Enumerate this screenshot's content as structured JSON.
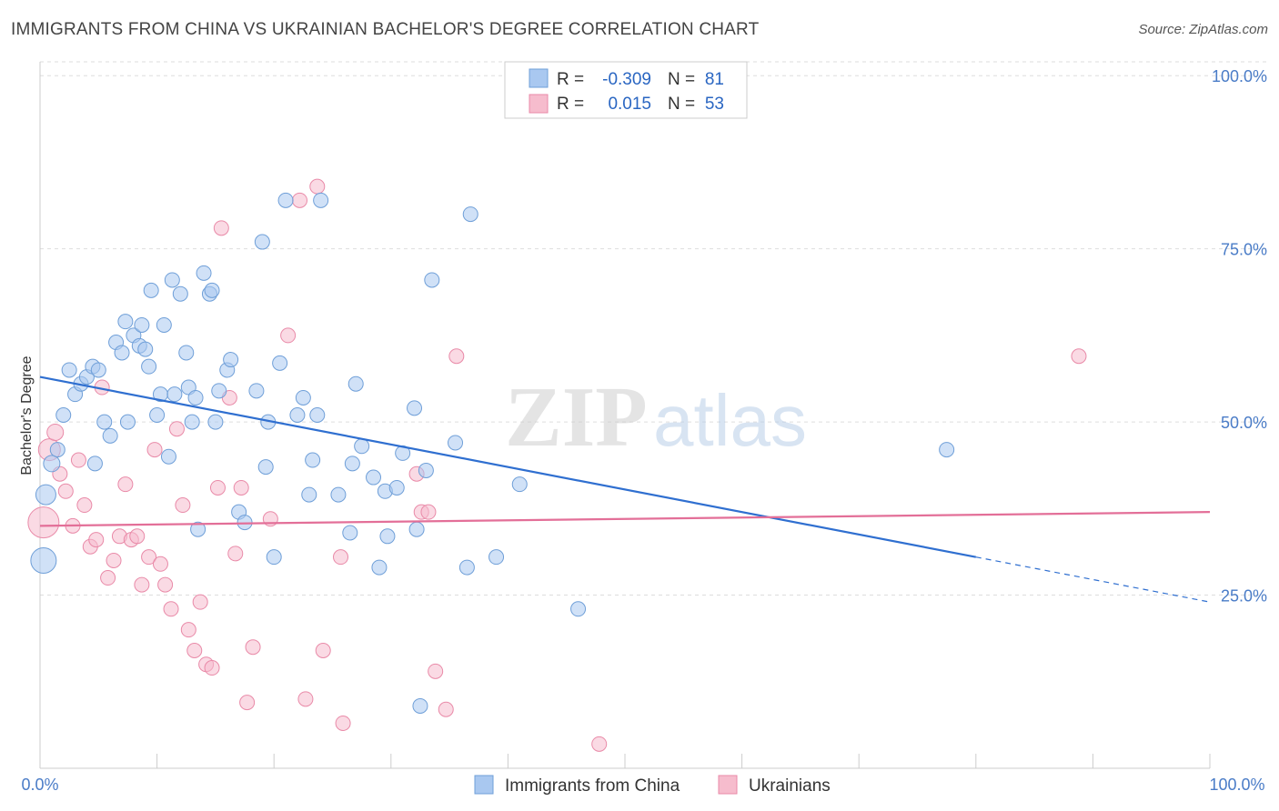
{
  "header": {
    "title": "IMMIGRANTS FROM CHINA VS UKRAINIAN BACHELOR'S DEGREE CORRELATION CHART",
    "source": "Source: ZipAtlas.com"
  },
  "watermark": {
    "zip": "ZIP",
    "atlas": "atlas"
  },
  "legend_top": {
    "series1": {
      "r_label": "R =",
      "r_value": "-0.309",
      "n_label": "N =",
      "n_value": "81"
    },
    "series2": {
      "r_label": "R =",
      "r_value": "0.015",
      "n_label": "N =",
      "n_value": "53"
    }
  },
  "colors": {
    "china_fill": "#a9c8f0",
    "china_stroke": "#6f9fd8",
    "china_line": "#2f6fd0",
    "ukr_fill": "#f6bccd",
    "ukr_stroke": "#e98aa8",
    "ukr_line": "#e36f98",
    "tick": "#4a7cc7",
    "grid": "#dddddd"
  },
  "chart_data": {
    "type": "scatter",
    "title": "IMMIGRANTS FROM CHINA VS UKRAINIAN BACHELOR'S DEGREE CORRELATION CHART",
    "xlabel": "",
    "ylabel": "Bachelor's Degree",
    "xlim": [
      0,
      100
    ],
    "ylim": [
      0,
      102
    ],
    "x_tick_labels": [
      "0.0%",
      "100.0%"
    ],
    "y_ticks": [
      {
        "value": 25,
        "label": "25.0%"
      },
      {
        "value": 50,
        "label": "50.0%"
      },
      {
        "value": 75,
        "label": "75.0%"
      },
      {
        "value": 100,
        "label": "100.0%"
      }
    ],
    "legend": [
      "Immigrants from China",
      "Ukrainians"
    ],
    "series": [
      {
        "name": "Immigrants from China",
        "trend": {
          "start": [
            0,
            56.5
          ],
          "end": [
            80,
            30.5
          ],
          "dashed_end": [
            100,
            24
          ]
        },
        "points": [
          [
            0.3,
            30,
            14
          ],
          [
            0.5,
            39.5,
            11
          ],
          [
            1,
            44,
            9
          ],
          [
            1.5,
            46,
            8
          ],
          [
            2,
            51,
            8
          ],
          [
            2.5,
            57.5,
            8
          ],
          [
            3,
            54,
            8
          ],
          [
            3.5,
            55.5,
            8
          ],
          [
            4,
            56.5,
            8
          ],
          [
            4.5,
            58,
            8
          ],
          [
            4.7,
            44,
            8
          ],
          [
            5,
            57.5,
            8
          ],
          [
            5.5,
            50,
            8
          ],
          [
            6,
            48,
            8
          ],
          [
            6.5,
            61.5,
            8
          ],
          [
            7,
            60,
            8
          ],
          [
            7.3,
            64.5,
            8
          ],
          [
            7.5,
            50,
            8
          ],
          [
            8,
            62.5,
            8
          ],
          [
            8.5,
            61,
            8
          ],
          [
            8.7,
            64,
            8
          ],
          [
            9,
            60.5,
            8
          ],
          [
            9.3,
            58,
            8
          ],
          [
            9.5,
            69,
            8
          ],
          [
            10,
            51,
            8
          ],
          [
            10.3,
            54,
            8
          ],
          [
            10.6,
            64,
            8
          ],
          [
            11,
            45,
            8
          ],
          [
            11.3,
            70.5,
            8
          ],
          [
            11.5,
            54,
            8
          ],
          [
            12,
            68.5,
            8
          ],
          [
            12.5,
            60,
            8
          ],
          [
            12.7,
            55,
            8
          ],
          [
            13,
            50,
            8
          ],
          [
            13.3,
            53.5,
            8
          ],
          [
            13.5,
            34.5,
            8
          ],
          [
            14,
            71.5,
            8
          ],
          [
            14.5,
            68.5,
            8
          ],
          [
            14.7,
            69,
            8
          ],
          [
            15,
            50,
            8
          ],
          [
            15.3,
            54.5,
            8
          ],
          [
            16,
            57.5,
            8
          ],
          [
            16.3,
            59,
            8
          ],
          [
            17,
            37,
            8
          ],
          [
            17.5,
            35.5,
            8
          ],
          [
            18.5,
            54.5,
            8
          ],
          [
            19,
            76,
            8
          ],
          [
            19.3,
            43.5,
            8
          ],
          [
            19.5,
            50,
            8
          ],
          [
            20,
            30.5,
            8
          ],
          [
            20.5,
            58.5,
            8
          ],
          [
            21,
            82,
            8
          ],
          [
            22,
            51,
            8
          ],
          [
            22.5,
            53.5,
            8
          ],
          [
            23,
            39.5,
            8
          ],
          [
            23.3,
            44.5,
            8
          ],
          [
            23.7,
            51,
            8
          ],
          [
            24,
            82,
            8
          ],
          [
            25.5,
            39.5,
            8
          ],
          [
            26.5,
            34,
            8
          ],
          [
            26.7,
            44,
            8
          ],
          [
            27,
            55.5,
            8
          ],
          [
            27.5,
            46.5,
            8
          ],
          [
            28.5,
            42,
            8
          ],
          [
            29,
            29,
            8
          ],
          [
            29.5,
            40,
            8
          ],
          [
            29.7,
            33.5,
            8
          ],
          [
            30.5,
            40.5,
            8
          ],
          [
            31,
            45.5,
            8
          ],
          [
            32,
            52,
            8
          ],
          [
            32.2,
            34.5,
            8
          ],
          [
            32.5,
            9,
            8
          ],
          [
            33,
            43,
            8
          ],
          [
            33.5,
            70.5,
            8
          ],
          [
            35.5,
            47,
            8
          ],
          [
            36.5,
            29,
            8
          ],
          [
            36.8,
            80,
            8
          ],
          [
            39,
            30.5,
            8
          ],
          [
            41,
            41,
            8
          ],
          [
            46,
            23,
            8
          ],
          [
            77.5,
            46,
            8
          ]
        ]
      },
      {
        "name": "Ukrainians",
        "trend": {
          "start": [
            0,
            35
          ],
          "end": [
            100,
            37
          ]
        },
        "points": [
          [
            0.3,
            35.5,
            17
          ],
          [
            0.8,
            46,
            12
          ],
          [
            1.3,
            48.5,
            9
          ],
          [
            1.7,
            42.5,
            8
          ],
          [
            2.2,
            40,
            8
          ],
          [
            2.8,
            35,
            8
          ],
          [
            3.3,
            44.5,
            8
          ],
          [
            3.8,
            38,
            8
          ],
          [
            4.3,
            32,
            8
          ],
          [
            4.8,
            33,
            8
          ],
          [
            5.3,
            55,
            8
          ],
          [
            5.8,
            27.5,
            8
          ],
          [
            6.3,
            30,
            8
          ],
          [
            6.8,
            33.5,
            8
          ],
          [
            7.3,
            41,
            8
          ],
          [
            7.8,
            33,
            8
          ],
          [
            8.3,
            33.5,
            8
          ],
          [
            8.7,
            26.5,
            8
          ],
          [
            9.3,
            30.5,
            8
          ],
          [
            9.8,
            46,
            8
          ],
          [
            10.3,
            29.5,
            8
          ],
          [
            10.7,
            26.5,
            8
          ],
          [
            11.2,
            23,
            8
          ],
          [
            11.7,
            49,
            8
          ],
          [
            12.2,
            38,
            8
          ],
          [
            12.7,
            20,
            8
          ],
          [
            13.2,
            17,
            8
          ],
          [
            13.7,
            24,
            8
          ],
          [
            14.2,
            15,
            8
          ],
          [
            14.7,
            14.5,
            8
          ],
          [
            15.2,
            40.5,
            8
          ],
          [
            15.5,
            78,
            8
          ],
          [
            16.2,
            53.5,
            8
          ],
          [
            16.7,
            31,
            8
          ],
          [
            17.2,
            40.5,
            8
          ],
          [
            17.7,
            9.5,
            8
          ],
          [
            18.2,
            17.5,
            8
          ],
          [
            19.7,
            36,
            8
          ],
          [
            21.2,
            62.5,
            8
          ],
          [
            22.2,
            82,
            8
          ],
          [
            22.7,
            10,
            8
          ],
          [
            23.7,
            84,
            8
          ],
          [
            24.2,
            17,
            8
          ],
          [
            25.7,
            30.5,
            8
          ],
          [
            25.9,
            6.5,
            8
          ],
          [
            32.2,
            42.5,
            8
          ],
          [
            32.6,
            37,
            8
          ],
          [
            33.2,
            37,
            8
          ],
          [
            33.8,
            14,
            8
          ],
          [
            34.7,
            8.5,
            8
          ],
          [
            35.6,
            59.5,
            8
          ],
          [
            47.8,
            3.5,
            8
          ],
          [
            88.8,
            59.5,
            8
          ]
        ]
      }
    ]
  }
}
